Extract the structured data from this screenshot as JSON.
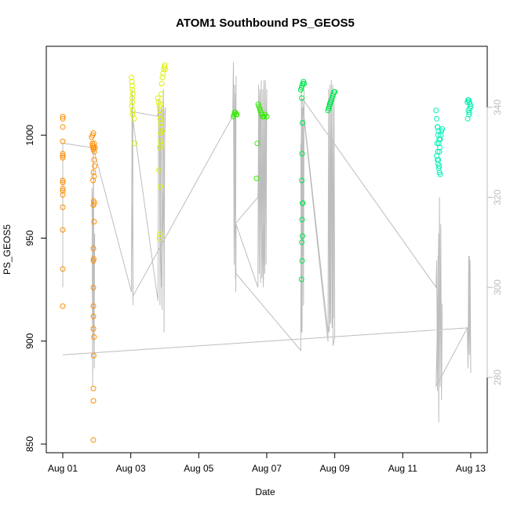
{
  "chart_data": {
    "type": "scatter",
    "title": "ATOM1 Southbound PS_GEOS5",
    "xlabel": "Date",
    "ylabel": "PS_GEOS5",
    "x_ticks": [
      "Aug 01",
      "Aug 03",
      "Aug 05",
      "Aug 07",
      "Aug 09",
      "Aug 11",
      "Aug 13"
    ],
    "x_tick_days": [
      1,
      3,
      5,
      7,
      9,
      11,
      13
    ],
    "y_ticks": [
      850,
      900,
      950,
      1000
    ],
    "y2_ticks": [
      "280",
      "300",
      "320",
      "340"
    ],
    "y2_tick_values": [
      280,
      300,
      320,
      340
    ],
    "xlim_days": [
      0.6,
      13.5
    ],
    "ylim": [
      845,
      1035
    ],
    "y2lim": [
      259,
      352
    ],
    "grid": false,
    "series": [
      {
        "color": "#FF8C00",
        "x": [
          1.0,
          1.0,
          1.0,
          1.0,
          1.0,
          1.0,
          1.0,
          1.0,
          1.0,
          1.0,
          1.0,
          1.0,
          1.0,
          1.0,
          1.0,
          1.0,
          1.87,
          1.88,
          1.89,
          1.9,
          1.91,
          1.92,
          1.93,
          1.95,
          1.85,
          1.88,
          1.9,
          1.92,
          1.94,
          1.9,
          1.92,
          1.89,
          1.91,
          1.93,
          1.9,
          1.92,
          1.9,
          1.91,
          1.9,
          1.9,
          1.9,
          1.9,
          1.9,
          1.92,
          1.91,
          1.9,
          1.9,
          1.9
        ],
        "y": [
          1009,
          1008,
          1004,
          997,
          991,
          990,
          989,
          978,
          977,
          974,
          971,
          973,
          965,
          954,
          935,
          917,
          996,
          995,
          994,
          993,
          994,
          996,
          992,
          994,
          999,
          1000,
          1001,
          988,
          985,
          982,
          980,
          978,
          968,
          967,
          966,
          958,
          945,
          940,
          939,
          926,
          917,
          912,
          906,
          902,
          893,
          877,
          871,
          852
        ]
      },
      {
        "color": "#DDF000",
        "x": [
          3.02,
          3.03,
          3.04,
          3.05,
          3.06,
          3.04,
          3.05,
          3.03,
          3.06,
          3.05,
          3.1,
          3.12,
          3.8,
          3.82,
          3.84,
          3.86,
          3.88,
          3.9,
          3.85,
          3.87,
          3.89,
          3.91,
          3.93,
          3.95,
          3.97,
          3.99,
          4.0,
          4.02,
          3.9,
          3.92,
          3.88,
          3.85,
          3.83,
          3.87,
          3.86,
          3.84,
          3.9,
          3.88
        ],
        "y": [
          1028,
          1026,
          1024,
          1022,
          1020,
          1018,
          1016,
          1014,
          1012,
          1010,
          1008,
          996,
          1018,
          1016,
          1014,
          1012,
          1015,
          1020,
          1010,
          1008,
          1006,
          1025,
          1028,
          1030,
          1032,
          1033,
          1034,
          1032,
          1004,
          1002,
          997,
          994,
          983,
          975,
          952,
          950,
          995,
          1001
        ]
      },
      {
        "color": "#33EE00",
        "x": [
          6.02,
          6.04,
          6.06,
          6.08,
          6.1,
          6.12,
          6.75,
          6.77,
          6.79,
          6.81,
          6.83,
          6.85,
          6.88,
          6.92,
          6.95,
          7.0,
          6.72,
          6.7
        ],
        "y": [
          1009,
          1010,
          1011,
          1011,
          1010,
          1010,
          1015,
          1014,
          1013,
          1012,
          1011,
          1010,
          1009,
          1009,
          1010,
          1009,
          996,
          979
        ]
      },
      {
        "color": "#00E64D",
        "x": [
          8.0,
          8.02,
          8.04,
          8.06,
          8.08,
          8.1,
          8.03,
          8.05,
          8.04,
          8.03,
          8.05,
          8.06,
          8.04,
          8.05,
          8.03,
          8.04,
          8.02,
          8.8,
          8.82,
          8.84,
          8.86,
          8.88,
          8.9,
          8.92,
          8.94,
          8.96,
          8.98,
          9.0,
          8.85,
          8.87,
          8.83
        ],
        "y": [
          1022,
          1023,
          1024,
          1025,
          1026,
          1025,
          1018,
          1006,
          991,
          978,
          967,
          967,
          959,
          951,
          948,
          939,
          930,
          1012,
          1013,
          1014,
          1015,
          1016,
          1017,
          1018,
          1019,
          1020,
          1021,
          1021,
          1015,
          1016,
          1013
        ]
      },
      {
        "color": "#00F0B4",
        "x": [
          11.98,
          12.0,
          12.02,
          12.04,
          12.06,
          12.08,
          12.1,
          12.12,
          12.14,
          12.16,
          12.0,
          12.02,
          12.04,
          12.06,
          12.08,
          12.1,
          12.03,
          12.05,
          12.07,
          12.09,
          12.01,
          12.03,
          12.05,
          12.07,
          12.9,
          12.92,
          12.94,
          12.96,
          12.98,
          13.0,
          12.93,
          12.95,
          12.97,
          12.91,
          12.96
        ],
        "y": [
          1012,
          1008,
          1004,
          1000,
          996,
          992,
          998,
          1000,
          1002,
          1003,
          990,
          988,
          986,
          984,
          982,
          981,
          1004,
          1002,
          998,
          994,
          996,
          992,
          988,
          985,
          1016,
          1017,
          1017,
          1016,
          1015,
          1014,
          1012,
          1010,
          1013,
          1008,
          1011
        ]
      }
    ],
    "secondary_series": {
      "name": "",
      "axis": "right",
      "color": "#bdbdbd",
      "x": [
        1.0,
        1.0,
        1.0,
        1.0,
        1.9,
        1.88,
        1.86,
        1.9,
        1.92,
        1.94,
        1.88,
        1.91,
        1.93,
        1.9,
        3.02,
        3.04,
        3.06,
        3.04,
        3.02,
        3.05,
        3.07,
        3.05,
        3.03,
        3.8,
        3.82,
        3.84,
        3.86,
        3.88,
        3.9,
        3.92,
        3.94,
        3.96,
        3.98,
        4.0,
        4.02,
        3.9,
        3.88,
        3.86,
        3.84,
        3.82,
        3.8,
        3.06,
        3.06,
        6.0,
        6.02,
        6.04,
        6.06,
        6.08,
        6.1,
        6.08,
        6.06,
        6.04,
        6.02,
        6.05,
        6.07,
        6.09,
        6.1,
        6.74,
        6.76,
        6.78,
        6.8,
        6.82,
        6.84,
        6.86,
        6.88,
        6.9,
        6.92,
        6.94,
        6.96,
        6.98,
        7.0,
        6.9,
        6.8,
        6.74,
        6.06,
        6.1,
        8.0,
        8.02,
        8.04,
        8.06,
        8.08,
        8.1,
        8.06,
        8.04,
        8.02,
        8.0,
        8.03,
        8.06,
        8.8,
        8.82,
        8.84,
        8.86,
        8.88,
        8.9,
        8.92,
        8.94,
        8.96,
        8.98,
        9.0,
        8.95,
        8.9,
        8.85,
        8.8,
        8.04,
        11.98,
        12.0,
        12.02,
        12.04,
        12.06,
        12.08,
        12.1,
        12.12,
        12.14,
        12.16,
        12.1,
        12.06,
        12.02,
        11.98,
        12.9,
        12.92,
        12.94,
        12.96,
        12.98,
        13.0,
        12.96,
        12.92,
        12.9,
        1.0
      ],
      "y": [
        332,
        300,
        300,
        332,
        331,
        278,
        322,
        311,
        286,
        312,
        298,
        292,
        282,
        331,
        299,
        344,
        320,
        312,
        304,
        343,
        296,
        342,
        339,
        297,
        342,
        338,
        296,
        339,
        340,
        295,
        338,
        344,
        290,
        339,
        340,
        300,
        310,
        330,
        336,
        340,
        338,
        339,
        298,
        338,
        350,
        328,
        336,
        302,
        347,
        318,
        345,
        305,
        348,
        320,
        343,
        299,
        314,
        300,
        345,
        303,
        344,
        301,
        346,
        302,
        344,
        304,
        346,
        303,
        346,
        305,
        344,
        300,
        344,
        320,
        314,
        303,
        286,
        345,
        290,
        339,
        296,
        344,
        307,
        340,
        290,
        332,
        294,
        340,
        288,
        344,
        290,
        345,
        292,
        346,
        291,
        345,
        293,
        343,
        289,
        287,
        340,
        292,
        290,
        342,
        300,
        306,
        277,
        307,
        270,
        320,
        278,
        314,
        275,
        296,
        297,
        312,
        292,
        278,
        291,
        282,
        307,
        285,
        306,
        281,
        307,
        282,
        291,
        285
      ]
    }
  }
}
